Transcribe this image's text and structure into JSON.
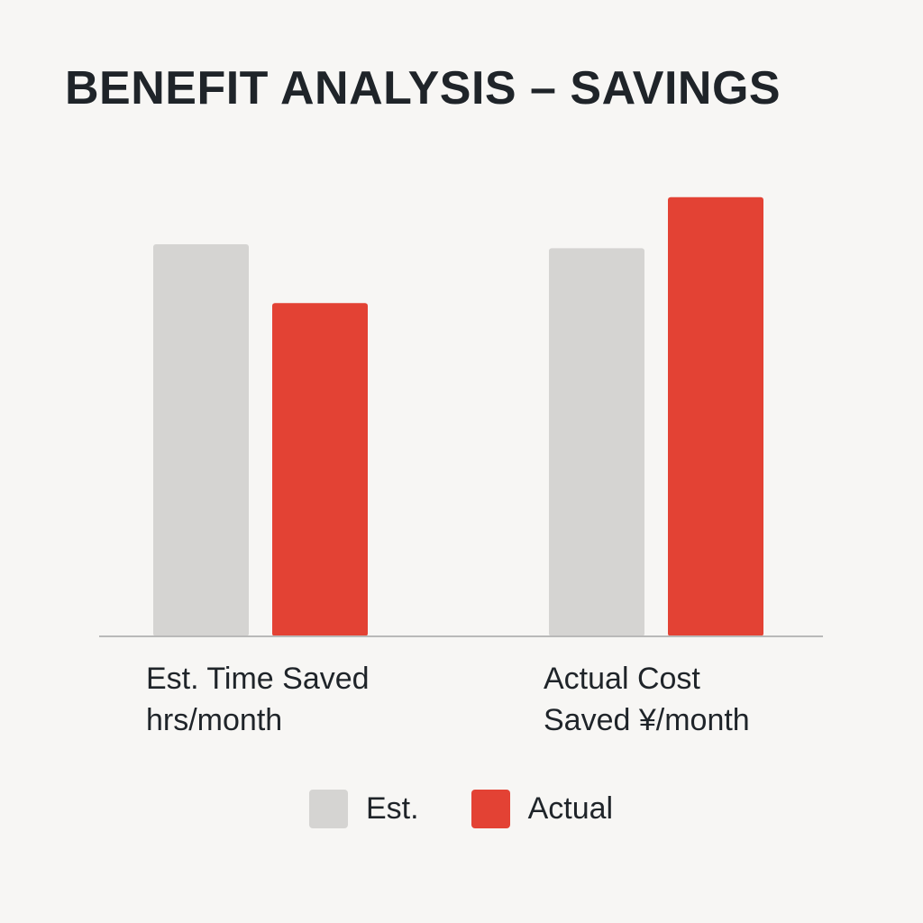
{
  "chart_data": {
    "type": "bar",
    "title": "BENEFIT ANALYSIS – SAVINGS",
    "categories": [
      [
        "Est. Time Saved",
        "hrs/month"
      ],
      [
        "Actual Cost",
        "Saved ¥/month"
      ]
    ],
    "series": [
      {
        "name": "Est.",
        "color": "#d5d4d2",
        "values": [
          100,
          99
        ]
      },
      {
        "name": "Actual",
        "color": "#e34234",
        "values": [
          85,
          112
        ]
      }
    ],
    "ylim": [
      0,
      120
    ],
    "grid": false,
    "legend": "bottom-center"
  }
}
